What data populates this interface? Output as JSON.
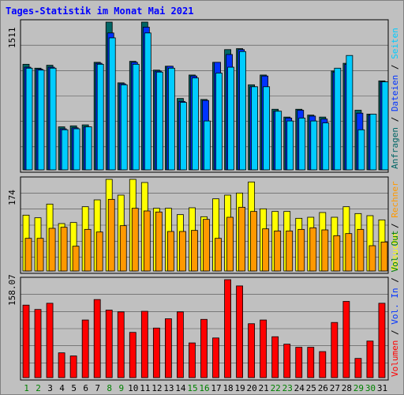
{
  "title": "Tages-Statistik im Monat Mai 2021",
  "colors": {
    "anfragen": "#006666",
    "dateien": "#0033ff",
    "seiten": "#00ccff",
    "besuche": "#ffff00",
    "rechner": "#ff9900",
    "volumen": "#ff0000",
    "weekend": "#008000",
    "weekday": "#000000"
  },
  "chart_data": [
    {
      "type": "bar",
      "title": "Tages-Statistik im Monat Mai 2021",
      "categories": [
        "1",
        "2",
        "3",
        "4",
        "5",
        "6",
        "7",
        "8",
        "9",
        "10",
        "11",
        "12",
        "13",
        "14",
        "15",
        "16",
        "17",
        "18",
        "19",
        "20",
        "21",
        "22",
        "23",
        "24",
        "25",
        "26",
        "27",
        "28",
        "29",
        "30",
        "31"
      ],
      "weekend_days": [
        "1",
        "2",
        "8",
        "9",
        "15",
        "16",
        "22",
        "23",
        "29",
        "30"
      ],
      "y_max_label": "1511",
      "ylim": [
        0,
        1511
      ],
      "legend": [
        "Anfragen",
        "/",
        "Dateien",
        "/",
        "Seiten"
      ],
      "series": [
        {
          "name": "Anfragen",
          "values": [
            1080,
            1040,
            1070,
            440,
            450,
            460,
            1100,
            1511,
            890,
            1110,
            1511,
            1020,
            1060,
            730,
            970,
            720,
            1100,
            1230,
            1240,
            870,
            970,
            620,
            540,
            620,
            560,
            540,
            1010,
            1090,
            610,
            570,
            910
          ]
        },
        {
          "name": "Dateien",
          "values": [
            1050,
            1030,
            1050,
            420,
            430,
            440,
            1090,
            1400,
            880,
            1100,
            1460,
            1010,
            1060,
            700,
            960,
            710,
            1100,
            1180,
            1230,
            850,
            960,
            600,
            530,
            610,
            550,
            520,
            1000,
            1080,
            580,
            560,
            900
          ]
        },
        {
          "name": "Seiten",
          "values": [
            1040,
            1020,
            1040,
            410,
            420,
            440,
            1080,
            1350,
            870,
            1080,
            1400,
            1000,
            1040,
            690,
            940,
            500,
            990,
            1050,
            1210,
            850,
            850,
            600,
            500,
            530,
            500,
            480,
            1040,
            1170,
            410,
            570,
            900
          ]
        }
      ]
    },
    {
      "type": "bar",
      "y_max_label": "174",
      "ylim": [
        0,
        174
      ],
      "legend": [
        "Besuche",
        "/",
        "Rechner"
      ],
      "series": [
        {
          "name": "Besuche",
          "values": [
            106,
            101,
            127,
            90,
            92,
            122,
            135,
            174,
            144,
            174,
            168,
            119,
            119,
            107,
            120,
            103,
            137,
            144,
            148,
            169,
            118,
            113,
            113,
            100,
            102,
            111,
            102,
            122,
            109,
            105,
            97
          ]
        },
        {
          "name": "Rechner",
          "values": [
            62,
            62,
            81,
            83,
            47,
            79,
            74,
            136,
            86,
            119,
            114,
            112,
            75,
            75,
            77,
            98,
            62,
            102,
            121,
            113,
            80,
            76,
            76,
            79,
            82,
            78,
            67,
            71,
            79,
            48,
            55
          ]
        }
      ]
    },
    {
      "type": "bar",
      "y_max_label": "158.07",
      "ylim": [
        0,
        158.07
      ],
      "legend": [
        "Volumen",
        "/",
        "Vol. In",
        "/",
        "Vol. Out"
      ],
      "series": [
        {
          "name": "Volumen",
          "values": [
            117,
            110,
            120,
            40,
            35,
            93,
            126,
            109,
            106,
            73,
            107,
            80,
            95,
            106,
            56,
            94,
            64,
            158.07,
            148,
            87,
            93,
            66,
            54,
            49,
            49,
            42,
            89,
            123,
            31,
            59,
            120
          ]
        }
      ]
    }
  ]
}
